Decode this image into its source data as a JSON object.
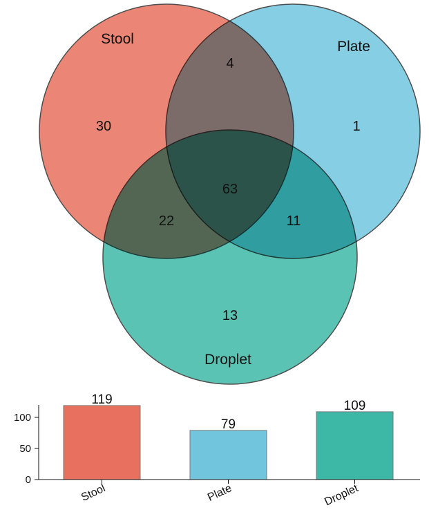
{
  "chart_data": [
    {
      "type": "venn",
      "sets": [
        {
          "name": "Stool",
          "color": "#e8705e"
        },
        {
          "name": "Plate",
          "color": "#71c6de"
        },
        {
          "name": "Droplet",
          "color": "#3db8a6"
        }
      ],
      "regions": [
        {
          "sets": [
            "Stool"
          ],
          "value": 30
        },
        {
          "sets": [
            "Plate"
          ],
          "value": 1
        },
        {
          "sets": [
            "Droplet"
          ],
          "value": 13
        },
        {
          "sets": [
            "Stool",
            "Plate"
          ],
          "value": 4
        },
        {
          "sets": [
            "Stool",
            "Droplet"
          ],
          "value": 22
        },
        {
          "sets": [
            "Plate",
            "Droplet"
          ],
          "value": 11
        },
        {
          "sets": [
            "Stool",
            "Plate",
            "Droplet"
          ],
          "value": 63
        }
      ]
    },
    {
      "type": "bar",
      "categories": [
        "Stool",
        "Plate",
        "Droplet"
      ],
      "values": [
        119,
        79,
        109
      ],
      "colors": [
        "#e8705e",
        "#71c6de",
        "#3db8a6"
      ],
      "ylim": [
        0,
        120
      ],
      "yticks": [
        0,
        50,
        100
      ],
      "grid": false
    }
  ]
}
